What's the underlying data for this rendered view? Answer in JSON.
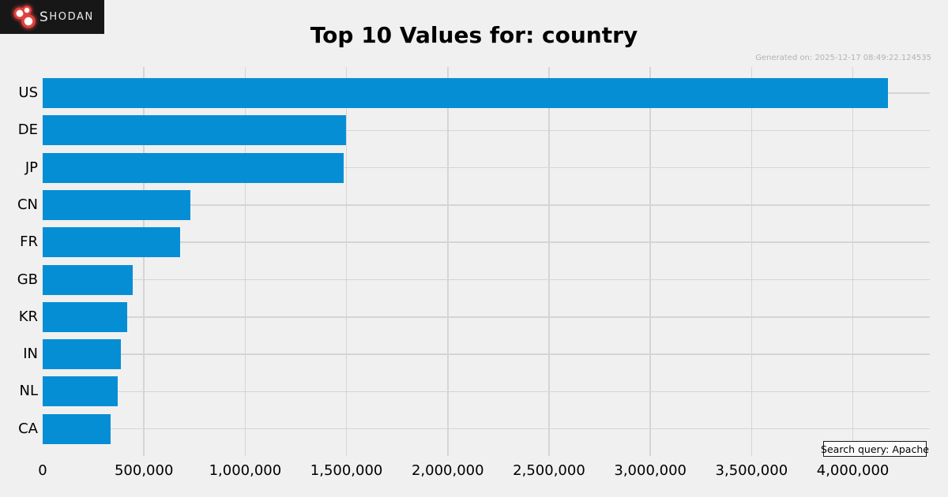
{
  "header": {
    "logo_first": "S",
    "logo_rest": "HODAN",
    "title": "Top 10 Values for: country",
    "generated_on": "Generated on: 2025-12-17 08:49:22.124535"
  },
  "footer": {
    "search_query": "Search query: Apache"
  },
  "colors": {
    "background": "#f0f0f0",
    "bar": "#068ed5",
    "gridline": "#d5d5d5",
    "header_bg": "#171717",
    "logo_red": "#e0433f",
    "timestamp_text": "#b3b3b3"
  },
  "chart_data": {
    "type": "bar",
    "orientation": "horizontal",
    "title": "Top 10 Values for: country",
    "categories": [
      "US",
      "DE",
      "JP",
      "CN",
      "FR",
      "GB",
      "KR",
      "IN",
      "NL",
      "CA"
    ],
    "values": [
      4175000,
      1497000,
      1485000,
      730000,
      677000,
      446000,
      418000,
      386000,
      369000,
      337000
    ],
    "xlabel": "",
    "ylabel": "",
    "xlim": [
      0,
      4380000
    ],
    "x_ticks": [
      {
        "value": 0,
        "label": "0"
      },
      {
        "value": 500000,
        "label": "500,000"
      },
      {
        "value": 1000000,
        "label": "1,000,000"
      },
      {
        "value": 1500000,
        "label": "1,500,000"
      },
      {
        "value": 2000000,
        "label": "2,000,000"
      },
      {
        "value": 2500000,
        "label": "2,500,000"
      },
      {
        "value": 3000000,
        "label": "3,000,000"
      },
      {
        "value": 3500000,
        "label": "3,500,000"
      },
      {
        "value": 4000000,
        "label": "4,000,000"
      }
    ],
    "grid": true,
    "legend": false
  }
}
